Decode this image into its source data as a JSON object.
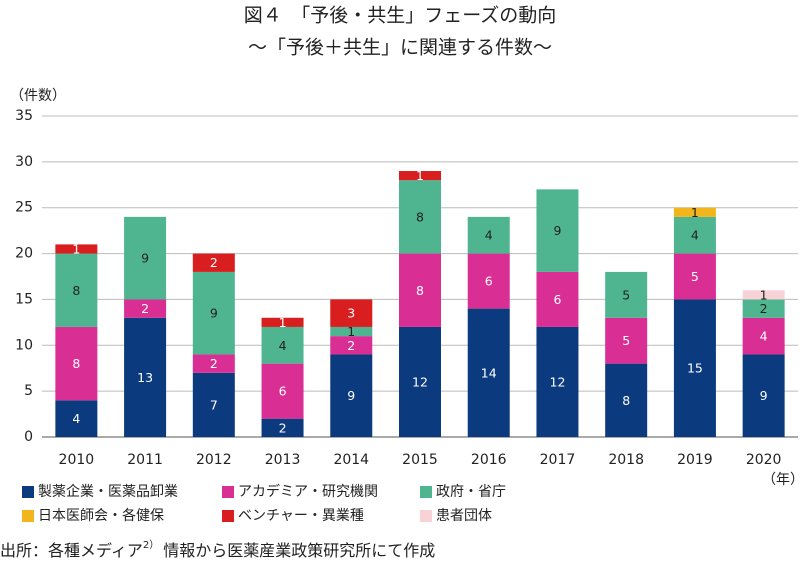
{
  "chart_data": {
    "type": "stacked_bar",
    "title": "図４　「予後・共生」フェーズの動向",
    "subtitle": "～「予後＋共生」に関連する件数～",
    "y_label": "（件数）",
    "x_label": "（年）",
    "categories": [
      "2010",
      "2011",
      "2012",
      "2013",
      "2014",
      "2015",
      "2016",
      "2017",
      "2018",
      "2019",
      "2020"
    ],
    "series": [
      {
        "name": "製薬企業・医薬品卸業",
        "color": "#0b3a7e",
        "values": [
          4,
          13,
          7,
          2,
          9,
          12,
          14,
          12,
          8,
          15,
          9
        ]
      },
      {
        "name": "アカデミア・研究機関",
        "color": "#d92e93",
        "values": [
          8,
          2,
          2,
          6,
          2,
          8,
          6,
          6,
          5,
          5,
          4
        ]
      },
      {
        "name": "政府・省庁",
        "color": "#4fb591",
        "values": [
          8,
          9,
          9,
          4,
          1,
          8,
          4,
          9,
          5,
          4,
          2
        ]
      },
      {
        "name": "日本医師会・各健保",
        "color": "#f2b51c",
        "values": [
          0,
          0,
          0,
          0,
          0,
          0,
          0,
          0,
          0,
          1,
          0
        ]
      },
      {
        "name": "ベンチャー・異業種",
        "color": "#d81e1e",
        "values": [
          1,
          0,
          2,
          1,
          3,
          1,
          0,
          0,
          0,
          0,
          0
        ]
      },
      {
        "name": "患者団体",
        "color": "#f7d3d8",
        "values": [
          0,
          0,
          0,
          0,
          0,
          0,
          0,
          0,
          0,
          0,
          1
        ]
      }
    ],
    "ylim": [
      0,
      35
    ],
    "yticks": [
      0,
      5,
      10,
      15,
      20,
      25,
      30,
      35
    ],
    "grid": true,
    "source": [
      "出所：各種メディア",
      "2）",
      "情報から医薬産業政策研究所にて作成"
    ]
  }
}
